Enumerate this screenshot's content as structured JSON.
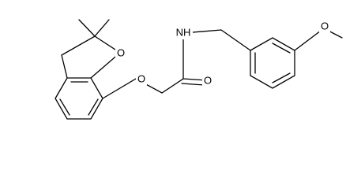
{
  "atoms": {
    "ring_oxygen": "O",
    "ether_oxygen": "O",
    "amide_nitrogen": "NH",
    "carbonyl_oxygen": "O",
    "methoxy_oxygen": "O"
  }
}
